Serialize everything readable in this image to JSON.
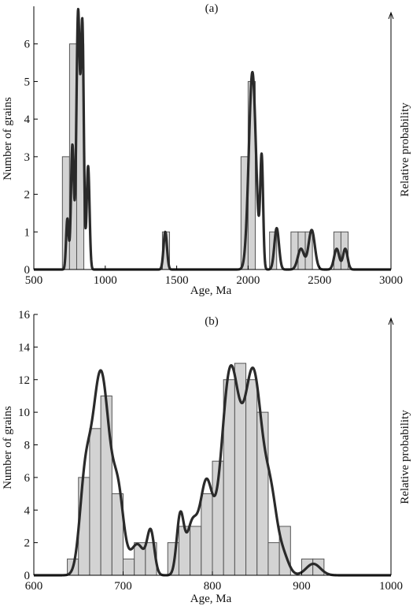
{
  "chart_data": [
    {
      "type": "bar",
      "title": "(a)",
      "xlabel": "Age, Ma",
      "ylabel": "Number of grains",
      "y2label": "Relative probability",
      "xlim": [
        500,
        3000
      ],
      "ylim": [
        0,
        7
      ],
      "xticks": [
        500,
        1000,
        1500,
        2000,
        2500,
        3000
      ],
      "yticks": [
        0,
        1,
        2,
        3,
        4,
        5,
        6
      ],
      "bin_width": 50,
      "bins": [
        {
          "start": 700,
          "count": 3
        },
        {
          "start": 750,
          "count": 6
        },
        {
          "start": 800,
          "count": 6
        },
        {
          "start": 1400,
          "count": 1
        },
        {
          "start": 1950,
          "count": 3
        },
        {
          "start": 2000,
          "count": 5
        },
        {
          "start": 2150,
          "count": 1
        },
        {
          "start": 2300,
          "count": 1
        },
        {
          "start": 2350,
          "count": 1
        },
        {
          "start": 2400,
          "count": 1
        },
        {
          "start": 2600,
          "count": 1
        },
        {
          "start": 2650,
          "count": 1
        }
      ],
      "probability_curve": {
        "peaks": [
          {
            "x": 735,
            "height": 1.35,
            "sigma": 9
          },
          {
            "x": 770,
            "height": 3.3,
            "sigma": 10
          },
          {
            "x": 810,
            "height": 6.85,
            "sigma": 12
          },
          {
            "x": 840,
            "height": 6.35,
            "sigma": 10
          },
          {
            "x": 880,
            "height": 2.75,
            "sigma": 10
          },
          {
            "x": 1420,
            "height": 1.0,
            "sigma": 12
          },
          {
            "x": 2030,
            "height": 5.25,
            "sigma": 25
          },
          {
            "x": 2095,
            "height": 2.9,
            "sigma": 10
          },
          {
            "x": 2200,
            "height": 1.1,
            "sigma": 16
          },
          {
            "x": 2370,
            "height": 0.55,
            "sigma": 22
          },
          {
            "x": 2445,
            "height": 1.05,
            "sigma": 22
          },
          {
            "x": 2620,
            "height": 0.55,
            "sigma": 18
          },
          {
            "x": 2680,
            "height": 0.55,
            "sigma": 16
          }
        ]
      }
    },
    {
      "type": "bar",
      "title": "(b)",
      "xlabel": "Age, Ma",
      "ylabel": "Number of grains",
      "y2label": "Relative probability",
      "xlim": [
        600,
        1000
      ],
      "ylim": [
        0,
        16
      ],
      "xticks": [
        600,
        700,
        800,
        900,
        1000
      ],
      "yticks": [
        0,
        2,
        4,
        6,
        8,
        10,
        12,
        14,
        16
      ],
      "bin_width": 12.5,
      "bins": [
        {
          "start": 637.5,
          "count": 1
        },
        {
          "start": 650,
          "count": 6
        },
        {
          "start": 662.5,
          "count": 9
        },
        {
          "start": 675,
          "count": 11
        },
        {
          "start": 687.5,
          "count": 5
        },
        {
          "start": 700,
          "count": 1
        },
        {
          "start": 712.5,
          "count": 2
        },
        {
          "start": 725,
          "count": 2
        },
        {
          "start": 750,
          "count": 2
        },
        {
          "start": 762.5,
          "count": 3
        },
        {
          "start": 775,
          "count": 3
        },
        {
          "start": 787.5,
          "count": 5
        },
        {
          "start": 800,
          "count": 7
        },
        {
          "start": 812.5,
          "count": 12
        },
        {
          "start": 825,
          "count": 13
        },
        {
          "start": 837.5,
          "count": 12
        },
        {
          "start": 850,
          "count": 10
        },
        {
          "start": 862.5,
          "count": 2
        },
        {
          "start": 875,
          "count": 3
        },
        {
          "start": 900,
          "count": 1
        },
        {
          "start": 912.5,
          "count": 1
        }
      ],
      "probability_curve": {
        "peaks": [
          {
            "x": 657,
            "height": 4.5,
            "sigma": 6
          },
          {
            "x": 675,
            "height": 12.5,
            "sigma": 10
          },
          {
            "x": 695,
            "height": 4.0,
            "sigma": 6
          },
          {
            "x": 716,
            "height": 1.9,
            "sigma": 8
          },
          {
            "x": 731,
            "height": 2.5,
            "sigma": 4
          },
          {
            "x": 764,
            "height": 3.6,
            "sigma": 4
          },
          {
            "x": 777,
            "height": 3.0,
            "sigma": 6
          },
          {
            "x": 793,
            "height": 5.5,
            "sigma": 7
          },
          {
            "x": 820,
            "height": 12.4,
            "sigma": 10
          },
          {
            "x": 846,
            "height": 12.2,
            "sigma": 10
          },
          {
            "x": 866,
            "height": 4.0,
            "sigma": 7
          },
          {
            "x": 880,
            "height": 1.0,
            "sigma": 6
          },
          {
            "x": 913,
            "height": 0.7,
            "sigma": 8
          }
        ]
      }
    }
  ]
}
